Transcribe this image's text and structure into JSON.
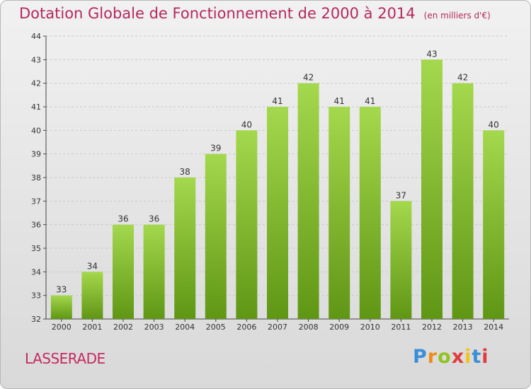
{
  "title": "Dotation Globale de Fonctionnement de 2000 à 2014",
  "subtitle": "(en milliers d'€)",
  "place": "LASSERADE",
  "brand": {
    "letters": [
      "P",
      "r",
      "o",
      "x",
      "i",
      "t",
      "i"
    ],
    "colors": [
      "#3a8fd8",
      "#f08a1c",
      "#8fc31f",
      "#e23b3b",
      "#f3c318",
      "#3a8fd8",
      "#e23b3b"
    ]
  },
  "colors": {
    "title": "#b5285e",
    "bar_top": "#a4d84d",
    "bar_bottom": "#5f9614",
    "grid": "#c9c9c9",
    "axis": "#444444"
  },
  "chart_data": {
    "type": "bar",
    "title": "Dotation Globale de Fonctionnement de 2000 à 2014",
    "subtitle": "(en milliers d'€)",
    "xlabel": "",
    "ylabel": "",
    "categories": [
      "2000",
      "2001",
      "2002",
      "2003",
      "2004",
      "2005",
      "2006",
      "2007",
      "2008",
      "2009",
      "2010",
      "2011",
      "2012",
      "2013",
      "2014"
    ],
    "values": [
      33,
      34,
      36,
      36,
      38,
      39,
      40,
      41,
      42,
      41,
      41,
      37,
      43,
      42,
      40
    ],
    "ylim": [
      32,
      44
    ],
    "yticks": [
      32,
      33,
      34,
      35,
      36,
      37,
      38,
      39,
      40,
      41,
      42,
      43,
      44
    ],
    "grid": true,
    "data_labels": true
  }
}
